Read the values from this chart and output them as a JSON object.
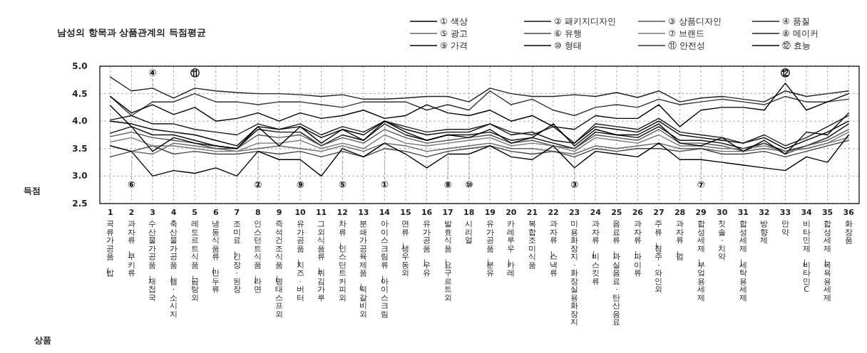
{
  "chart_data": {
    "type": "line",
    "title": "남성의 항목과 상품관계의 득점평균",
    "ylabel": "득점",
    "categories": [
      "1 곡류가공품—밥",
      "2 과자류—쿠키류",
      "3 수산물가공품—재첩국",
      "4 축산물가공품—햄·소시지",
      "5 레토르트식품—곰탕외",
      "6 냉동식품류—만두류",
      "7 조미료—간장·된장",
      "8 인스턴트식품—라면",
      "9 즉석건조식품—명태스프외",
      "10 유가공품—치즈·버터",
      "11 그외식품류—튀김가루",
      "12 차류—인스턴트커피외",
      "13 분쇄가공육제품—떡갈비외",
      "14 아이스크림류—아이스크림",
      "15 면류—생우동외",
      "16 유가공품—우유",
      "17 발효식품—요구르트외",
      "18 시리얼",
      "19 유가공품—분유",
      "20 카레루우—카레",
      "21 복합조미식품",
      "22 과자류—스낵류",
      "23 미용화장지·화장실용화장지",
      "24 과자류—비스킷류",
      "25 음료류—과실음료·탄산음료",
      "26 과자류—파이류",
      "27 주류—청주·와인외",
      "28 과자류—껌",
      "29 합성세제—부엌용세제",
      "30 칫솔·치약",
      "31 합성세제—세탁용세제",
      "32 방향제",
      "33 안약",
      "34 비타민제—비타민C",
      "35 합성세제—목욕용세제",
      "36 화장품"
    ],
    "ylim": [
      2.5,
      5.0
    ],
    "yticks": [
      {
        "value": 2.5,
        "label": "2.5"
      },
      {
        "value": 3.0,
        "label": "3.0"
      },
      {
        "value": 3.5,
        "label": "3.5"
      },
      {
        "value": 4.0,
        "label": "4.0"
      },
      {
        "value": 4.5,
        "label": "4.5"
      },
      {
        "value": 5.0,
        "label": "5.0"
      }
    ],
    "annotations": [
      {
        "text": "④",
        "x": "3 수산물가공품—재첩국",
        "y": 4.6
      },
      {
        "text": "⑪",
        "x": "5 레토르트식품—곰탕외",
        "y": 4.5
      },
      {
        "text": "②",
        "x": "8 인스턴트식품—라면",
        "y": 3.85
      },
      {
        "text": "⑨",
        "x": "10 유가공품—치즈·버터",
        "y": 3.9
      },
      {
        "text": "⑤",
        "x": "12 차류—인스턴트커피외",
        "y": 3.55
      },
      {
        "text": "⑧",
        "x": "17 발효식품—요구르트외",
        "y": 3.85
      },
      {
        "text": "⑩",
        "x": "18 시리얼",
        "y": 3.4
      },
      {
        "text": "③",
        "x": "23 미용화장지·화장실용화장지",
        "y": 3.5
      },
      {
        "text": "⑦",
        "x": "29 합성세제—부엌용세제",
        "y": 3.55
      },
      {
        "text": "⑫",
        "x": "33 안약",
        "y": 4.69
      },
      {
        "text": "①",
        "x": "14 아이스크림류—아이스크림",
        "y": 4.0
      },
      {
        "text": "⑥",
        "x": "2 과자류—쿠키류",
        "y": 3.45
      },
      "상품"
    ],
    "grid": true,
    "legend": "top right",
    "marker": "none",
    "line_style": "solid",
    "series": [
      {
        "name": "① 색상",
        "color": "#000000",
        "values": [
          4.0,
          3.95,
          3.85,
          3.8,
          3.75,
          3.65,
          3.55,
          3.9,
          3.85,
          3.9,
          3.7,
          3.85,
          3.75,
          4.0,
          3.85,
          3.75,
          3.8,
          3.8,
          3.95,
          3.75,
          3.8,
          3.65,
          3.6,
          3.9,
          3.85,
          3.8,
          4.0,
          3.75,
          3.7,
          3.65,
          3.6,
          3.7,
          3.5,
          3.65,
          3.8,
          4.0
        ]
      },
      {
        "name": "② 패키지디자인",
        "color": "#111111",
        "values": [
          3.78,
          3.9,
          3.75,
          3.75,
          3.65,
          3.55,
          3.5,
          3.85,
          3.8,
          3.8,
          3.55,
          3.75,
          3.65,
          3.95,
          3.75,
          3.65,
          3.75,
          3.75,
          3.8,
          3.65,
          3.7,
          3.6,
          3.5,
          3.8,
          3.75,
          3.7,
          3.9,
          3.65,
          3.65,
          3.6,
          3.5,
          3.6,
          3.45,
          3.55,
          3.7,
          3.95
        ]
      },
      {
        "name": "③ 상품디자인",
        "color": "#555555",
        "values": [
          3.72,
          3.8,
          3.7,
          3.65,
          3.6,
          3.5,
          3.5,
          3.75,
          3.7,
          3.75,
          3.55,
          3.7,
          3.6,
          3.85,
          3.7,
          3.6,
          3.65,
          3.7,
          3.75,
          3.6,
          3.65,
          3.55,
          3.5,
          3.75,
          3.7,
          3.65,
          3.85,
          3.6,
          3.6,
          3.55,
          3.45,
          3.6,
          3.4,
          3.55,
          3.65,
          3.85
        ]
      },
      {
        "name": "④ 품질",
        "color": "#222222",
        "values": [
          4.8,
          4.55,
          4.6,
          4.42,
          4.6,
          4.55,
          4.52,
          4.5,
          4.5,
          4.48,
          4.45,
          4.48,
          4.4,
          4.4,
          4.42,
          4.45,
          4.45,
          4.35,
          4.6,
          4.5,
          4.45,
          4.45,
          4.48,
          4.45,
          4.52,
          4.43,
          4.55,
          4.35,
          4.42,
          4.45,
          4.4,
          4.35,
          4.55,
          4.45,
          4.5,
          4.55
        ]
      },
      {
        "name": "⑤ 광고",
        "color": "#666666",
        "values": [
          3.55,
          3.45,
          3.4,
          3.6,
          3.55,
          3.5,
          3.45,
          3.5,
          3.55,
          3.5,
          3.45,
          3.55,
          3.45,
          3.6,
          3.55,
          3.45,
          3.5,
          3.55,
          3.6,
          3.5,
          3.5,
          3.45,
          3.4,
          3.55,
          3.5,
          3.55,
          3.6,
          3.5,
          3.5,
          3.45,
          3.45,
          3.5,
          3.45,
          3.5,
          3.6,
          3.7
        ]
      },
      {
        "name": "⑥ 유행",
        "color": "#444444",
        "values": [
          3.35,
          3.45,
          3.55,
          3.4,
          3.45,
          3.4,
          3.4,
          3.45,
          3.4,
          3.45,
          3.35,
          3.45,
          3.35,
          3.5,
          3.45,
          3.35,
          3.45,
          3.5,
          3.55,
          3.45,
          3.4,
          3.45,
          3.35,
          3.5,
          3.45,
          3.5,
          3.5,
          3.45,
          3.5,
          3.4,
          3.4,
          3.45,
          3.35,
          3.45,
          3.55,
          3.65
        ]
      },
      {
        "name": "⑦ 브랜드",
        "color": "#777777",
        "values": [
          3.62,
          3.7,
          3.55,
          3.55,
          3.5,
          3.45,
          3.45,
          3.6,
          3.6,
          3.65,
          3.5,
          3.6,
          3.5,
          3.75,
          3.6,
          3.55,
          3.6,
          3.65,
          3.7,
          3.55,
          3.6,
          3.55,
          3.45,
          3.7,
          3.65,
          3.6,
          3.75,
          3.55,
          3.55,
          3.5,
          3.5,
          3.55,
          3.45,
          3.5,
          3.6,
          3.8
        ]
      },
      {
        "name": "⑧ 메이커",
        "color": "#1a1a1a",
        "values": [
          4.02,
          4.1,
          3.95,
          3.95,
          3.85,
          3.8,
          3.75,
          3.95,
          3.85,
          3.95,
          3.75,
          3.9,
          3.8,
          4.0,
          3.9,
          3.8,
          3.85,
          3.85,
          3.95,
          3.8,
          3.75,
          3.9,
          3.6,
          3.95,
          3.9,
          3.85,
          4.05,
          3.8,
          3.75,
          3.7,
          3.6,
          3.75,
          3.55,
          3.7,
          3.9,
          4.1
        ]
      },
      {
        "name": "⑨ 가격",
        "color": "#000000",
        "values": [
          4.28,
          3.9,
          3.45,
          3.7,
          3.6,
          3.55,
          3.5,
          3.9,
          3.55,
          3.9,
          3.6,
          3.85,
          3.65,
          4.0,
          3.8,
          3.65,
          3.75,
          3.7,
          3.85,
          3.6,
          3.7,
          3.95,
          3.55,
          3.85,
          3.75,
          3.75,
          3.95,
          3.6,
          3.55,
          3.7,
          3.45,
          3.65,
          3.4,
          3.8,
          3.75,
          4.15
        ]
      },
      {
        "name": "⑩ 형태",
        "color": "#000000",
        "values": [
          3.55,
          3.45,
          3.0,
          3.1,
          3.05,
          3.15,
          3.0,
          3.45,
          3.3,
          3.3,
          3.0,
          3.5,
          3.35,
          3.6,
          3.4,
          3.15,
          3.4,
          3.4,
          3.55,
          3.35,
          3.3,
          3.55,
          3.15,
          3.45,
          3.4,
          3.35,
          3.6,
          3.3,
          3.3,
          3.25,
          3.2,
          3.15,
          3.1,
          3.35,
          3.25,
          3.75
        ]
      },
      {
        "name": "⑪ 안전성",
        "color": "#333333",
        "values": [
          4.45,
          4.1,
          4.35,
          4.35,
          4.5,
          4.35,
          4.35,
          4.3,
          4.35,
          4.35,
          4.3,
          4.25,
          4.35,
          4.35,
          4.35,
          4.2,
          4.3,
          4.2,
          4.55,
          4.3,
          4.4,
          4.2,
          4.1,
          4.25,
          4.3,
          4.25,
          4.4,
          4.3,
          4.35,
          4.4,
          4.35,
          4.3,
          4.45,
          4.35,
          4.35,
          4.4
        ]
      },
      {
        "name": "⑫ 효능",
        "color": "#000000",
        "values": [
          4.45,
          4.15,
          4.3,
          4.12,
          4.25,
          4.0,
          4.05,
          4.15,
          4.0,
          4.15,
          4.05,
          4.1,
          4.2,
          4.05,
          4.1,
          4.3,
          4.15,
          4.1,
          4.2,
          4.0,
          4.1,
          3.9,
          3.85,
          4.1,
          4.05,
          4.05,
          4.3,
          3.9,
          4.2,
          4.25,
          4.25,
          4.2,
          4.69,
          4.2,
          4.35,
          4.5
        ]
      }
    ]
  }
}
